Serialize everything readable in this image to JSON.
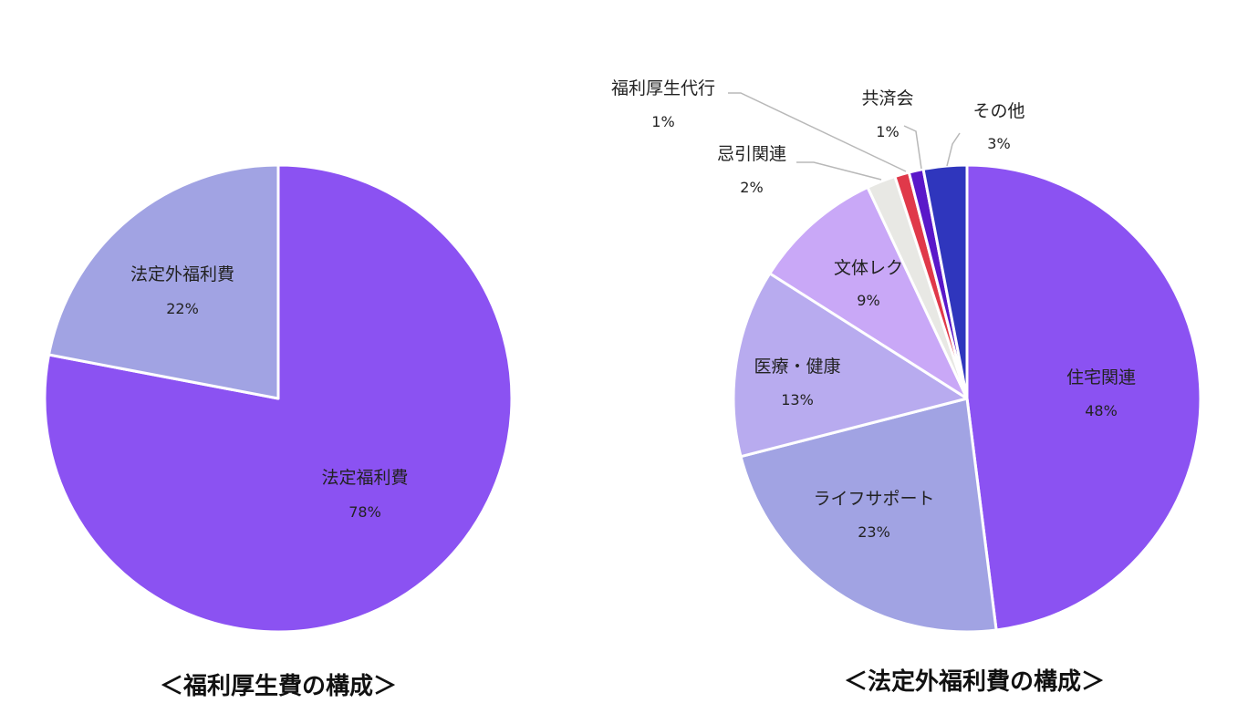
{
  "chart_data": [
    {
      "type": "pie",
      "title": "＜福利厚生費の構成＞",
      "series": [
        {
          "name": "福利厚生費の構成",
          "values": [
            78,
            22
          ]
        }
      ],
      "categories": [
        "法定福利費",
        "法定外福利費"
      ],
      "value_labels": [
        "78%",
        "22%"
      ],
      "colors": [
        "#8b52f2",
        "#a1a3e3"
      ],
      "start_angle_deg": 0,
      "direction": "clockwise",
      "legend": "none"
    },
    {
      "type": "pie",
      "title": "＜法定外福利費の構成＞",
      "series": [
        {
          "name": "法定外福利費の構成",
          "values": [
            48,
            23,
            13,
            9,
            2,
            1,
            1,
            3
          ]
        }
      ],
      "categories": [
        "住宅関連",
        "ライフサポート",
        "医療・健康",
        "文体レク",
        "忌引関連",
        "福利厚生代行",
        "共済会",
        "その他"
      ],
      "value_labels": [
        "48%",
        "23%",
        "13%",
        "9%",
        "2%",
        "1%",
        "1%",
        "3%"
      ],
      "colors": [
        "#8b52f2",
        "#a1a3e3",
        "#b8abef",
        "#c9a8f7",
        "#e8e8e4",
        "#e0394a",
        "#5a18c9",
        "#2f36bd"
      ],
      "start_angle_deg": 0,
      "direction": "clockwise",
      "legend": "none"
    }
  ]
}
